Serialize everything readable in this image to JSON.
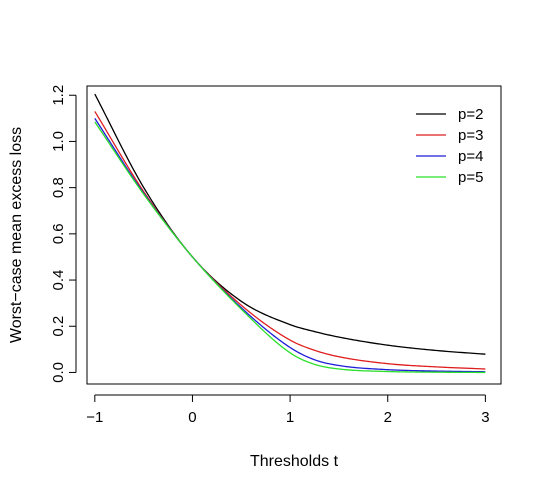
{
  "chart_data": {
    "type": "line",
    "title": "",
    "xlabel": "Thresholds t",
    "ylabel": "Worst−case mean excess loss",
    "xlim": [
      -1.08,
      3.16
    ],
    "ylim": [
      -0.05,
      1.24
    ],
    "xticks": [
      -1,
      0,
      1,
      2,
      3
    ],
    "xtick_labels": [
      "−1",
      "0",
      "1",
      "2",
      "3"
    ],
    "yticks": [
      0.0,
      0.2,
      0.4,
      0.6,
      0.8,
      1.0,
      1.2
    ],
    "ytick_labels": [
      "0.0",
      "0.2",
      "0.4",
      "0.6",
      "0.8",
      "1.0",
      "1.2"
    ],
    "grid": false,
    "legend_position": "top-right",
    "x": [
      -1.0,
      -0.5,
      0.0,
      0.5,
      1.0,
      1.25,
      1.5,
      2.0,
      2.5,
      3.0
    ],
    "series": [
      {
        "name": "p=2",
        "color": "#000000",
        "values": [
          1.205,
          0.801,
          0.5,
          0.308,
          0.207,
          0.177,
          0.153,
          0.118,
          0.095,
          0.079
        ]
      },
      {
        "name": "p=3",
        "color": "#df1e1e",
        "values": [
          1.13,
          0.783,
          0.5,
          0.291,
          0.14,
          0.096,
          0.068,
          0.038,
          0.024,
          0.015
        ]
      },
      {
        "name": "p=4",
        "color": "#1e1ed8",
        "values": [
          1.1,
          0.776,
          0.5,
          0.28,
          0.108,
          0.055,
          0.03,
          0.012,
          0.006,
          0.003
        ]
      },
      {
        "name": "p=5",
        "color": "#2be02b",
        "values": [
          1.085,
          0.772,
          0.5,
          0.274,
          0.085,
          0.035,
          0.015,
          0.004,
          0.001,
          0.0
        ]
      }
    ]
  }
}
